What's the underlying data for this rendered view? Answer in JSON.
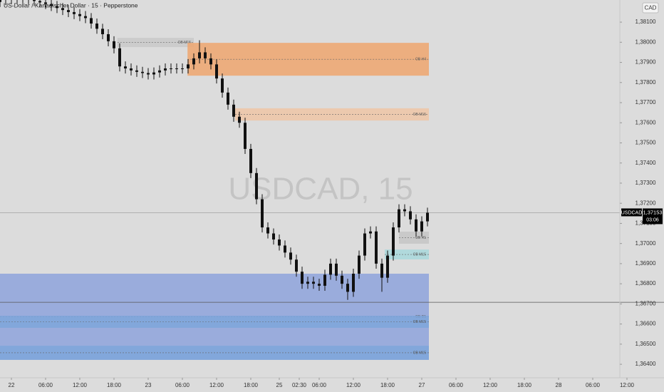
{
  "chart_data": {
    "type": "candlestick",
    "title": "US-Dollar / Kanadischer Dollar · 15 · Pepperstone",
    "watermark": "USDCAD, 15",
    "currency": "CAD",
    "symbol": "USDCAD",
    "last_price": {
      "value": 1.37153,
      "label": "1,37153"
    },
    "countdown": "03:06",
    "hline": 1.36708,
    "up_color": "#111111",
    "down_color": "#111111",
    "x": [
      -2,
      -1,
      0,
      1,
      2,
      3,
      4,
      5,
      6,
      7,
      8,
      9,
      10,
      11,
      12,
      13,
      14,
      15,
      16,
      17,
      18,
      19,
      20,
      21,
      22,
      23,
      24,
      25,
      26,
      27,
      28,
      29,
      30,
      31,
      32,
      33,
      34,
      35,
      36,
      37,
      38,
      39,
      40,
      41,
      42,
      43,
      44,
      45,
      46,
      47,
      48,
      49,
      50,
      51,
      52,
      53,
      54,
      55,
      56,
      57,
      58,
      59,
      60,
      61,
      62,
      63,
      64,
      65,
      66,
      67,
      68,
      69,
      70,
      71,
      72,
      73
    ],
    "open": [
      1.382,
      1.3821,
      1.38215,
      1.38218,
      1.3822,
      1.38222,
      1.38214,
      1.38205,
      1.38198,
      1.3819,
      1.3818,
      1.3817,
      1.3816,
      1.3815,
      1.3814,
      1.3813,
      1.3812,
      1.38093,
      1.38067,
      1.3804,
      1.38005,
      1.3797,
      1.3788,
      1.3787,
      1.3786,
      1.37853,
      1.37847,
      1.3784,
      1.3785,
      1.3786,
      1.3787,
      1.3787,
      1.3787,
      1.3787,
      1.3789,
      1.3792,
      1.3795,
      1.3792,
      1.3789,
      1.3782,
      1.3775,
      1.3769,
      1.3763,
      1.376,
      1.3747,
      1.3735,
      1.3722,
      1.3708,
      1.3705,
      1.3702,
      1.3699,
      1.36955,
      1.3692,
      1.3686,
      1.368,
      1.3681,
      1.368,
      1.3679,
      1.36845,
      1.369,
      1.3684,
      1.368,
      1.3676,
      1.3685,
      1.3694,
      1.3705,
      1.3706,
      1.369,
      1.3683,
      1.3694,
      1.3708,
      1.3717,
      1.3716,
      1.3712,
      1.3706,
      1.3711
    ],
    "high": [
      1.38235,
      1.3824,
      1.38243,
      1.38245,
      1.38247,
      1.38247,
      1.38239,
      1.3823,
      1.38223,
      1.38215,
      1.38205,
      1.38195,
      1.38185,
      1.38175,
      1.38165,
      1.38155,
      1.38145,
      1.38118,
      1.38092,
      1.38065,
      1.3803,
      1.37995,
      1.37905,
      1.37895,
      1.37885,
      1.37878,
      1.37872,
      1.37875,
      1.37885,
      1.37895,
      1.37895,
      1.37895,
      1.37895,
      1.37915,
      1.37945,
      1.3801,
      1.37975,
      1.37945,
      1.37915,
      1.37845,
      1.37775,
      1.37715,
      1.37655,
      1.37625,
      1.37495,
      1.37375,
      1.37245,
      1.37105,
      1.37075,
      1.37045,
      1.37015,
      1.3698,
      1.36945,
      1.36885,
      1.36835,
      1.36835,
      1.36825,
      1.3687,
      1.36925,
      1.36925,
      1.36865,
      1.36825,
      1.36875,
      1.36965,
      1.37075,
      1.37085,
      1.37085,
      1.36925,
      1.36965,
      1.37105,
      1.37195,
      1.37195,
      1.37185,
      1.37145,
      1.37135,
      1.37178
    ],
    "low": [
      1.38175,
      1.38185,
      1.3819,
      1.38193,
      1.38195,
      1.38189,
      1.3818,
      1.38173,
      1.38165,
      1.38155,
      1.38145,
      1.38135,
      1.38125,
      1.38115,
      1.38105,
      1.38095,
      1.38068,
      1.38042,
      1.38015,
      1.3798,
      1.37945,
      1.37855,
      1.37845,
      1.37835,
      1.37828,
      1.37822,
      1.37815,
      1.37815,
      1.37825,
      1.37835,
      1.37845,
      1.37845,
      1.37845,
      1.37845,
      1.37865,
      1.37895,
      1.37895,
      1.37865,
      1.37795,
      1.37725,
      1.37665,
      1.37605,
      1.37575,
      1.37445,
      1.37325,
      1.37195,
      1.37055,
      1.37025,
      1.36995,
      1.36965,
      1.3693,
      1.36895,
      1.36835,
      1.36775,
      1.36775,
      1.36775,
      1.36765,
      1.36765,
      1.3682,
      1.36815,
      1.36775,
      1.3672,
      1.36735,
      1.36825,
      1.36915,
      1.37025,
      1.36875,
      1.3676,
      1.36805,
      1.36915,
      1.37055,
      1.37135,
      1.37095,
      1.37035,
      1.37035,
      1.37085
    ],
    "close": [
      1.3821,
      1.38215,
      1.38218,
      1.3822,
      1.38222,
      1.38214,
      1.38205,
      1.38198,
      1.3819,
      1.3818,
      1.3817,
      1.3816,
      1.3815,
      1.3814,
      1.3813,
      1.3812,
      1.38093,
      1.38067,
      1.3804,
      1.38005,
      1.3797,
      1.3788,
      1.3787,
      1.3786,
      1.37853,
      1.37847,
      1.3784,
      1.3785,
      1.3786,
      1.3787,
      1.3787,
      1.3787,
      1.3787,
      1.3789,
      1.3792,
      1.3795,
      1.3792,
      1.3789,
      1.3782,
      1.3775,
      1.3769,
      1.3763,
      1.376,
      1.3747,
      1.3735,
      1.3722,
      1.3708,
      1.3705,
      1.3702,
      1.3699,
      1.36955,
      1.3692,
      1.3686,
      1.368,
      1.3681,
      1.368,
      1.3679,
      1.36845,
      1.369,
      1.3684,
      1.368,
      1.3676,
      1.3685,
      1.3694,
      1.3705,
      1.3706,
      1.369,
      1.3683,
      1.3694,
      1.3708,
      1.3717,
      1.3716,
      1.3712,
      1.3706,
      1.3711,
      1.37153
    ],
    "zones": [
      {
        "label": "OB M15",
        "x0": 18.6,
        "x1": 32,
        "y0": 1.37976,
        "y1": 1.38022,
        "color": "#c9c9c9"
      },
      {
        "label": "OB H4",
        "x0": 30.9,
        "x1": 73.25,
        "y0": 1.37834,
        "y1": 1.37997,
        "color": "#eea66e"
      },
      {
        "label": "OB M15",
        "x0": 39.25,
        "x1": 73.25,
        "y0": 1.37611,
        "y1": 1.37672,
        "color": "#efc6a6"
      },
      {
        "label": "OB H1",
        "x0": 68,
        "x1": 73.25,
        "y0": 1.36999,
        "y1": 1.37059,
        "color": "#c6c6c6"
      },
      {
        "label": "OB M15",
        "x0": 65.5,
        "x1": 73.25,
        "y0": 1.36921,
        "y1": 1.3697,
        "color": "#a8d8dc"
      },
      {
        "label": "OB D1",
        "x0": -2,
        "x1": 73.25,
        "y0": 1.36422,
        "y1": 1.3685,
        "color": "#8ea3dc"
      },
      {
        "label": "OB M15",
        "x0": -2,
        "x1": 73.25,
        "y0": 1.36581,
        "y1": 1.36641,
        "color": "#7ea6da"
      },
      {
        "label": "OB M15",
        "x0": -2,
        "x1": 73.25,
        "y0": 1.36422,
        "y1": 1.36492,
        "color": "#7ea6da"
      }
    ],
    "xlim": [
      -2,
      106.75
    ],
    "ylim": [
      1.36333,
      1.3821
    ],
    "xticks": [
      {
        "value": 0,
        "label": "22"
      },
      {
        "value": 6,
        "label": "06:00"
      },
      {
        "value": 12,
        "label": "12:00"
      },
      {
        "value": 18,
        "label": "18:00"
      },
      {
        "value": 24,
        "label": "23"
      },
      {
        "value": 30,
        "label": "06:00"
      },
      {
        "value": 36,
        "label": "12:00"
      },
      {
        "value": 42,
        "label": "18:00"
      },
      {
        "value": 47,
        "label": "25"
      },
      {
        "value": 50.5,
        "label": "02:30"
      },
      {
        "value": 54,
        "label": "06:00"
      },
      {
        "value": 60,
        "label": "12:00"
      },
      {
        "value": 66,
        "label": "18:00"
      },
      {
        "value": 72,
        "label": "27"
      },
      {
        "value": 78,
        "label": "06:00"
      },
      {
        "value": 84,
        "label": "12:00"
      },
      {
        "value": 90,
        "label": "18:00"
      },
      {
        "value": 96,
        "label": "28"
      },
      {
        "value": 102,
        "label": "06:00"
      },
      {
        "value": 108,
        "label": "12:00"
      }
    ],
    "yticks": [
      {
        "value": 1.381,
        "label": "1,38100"
      },
      {
        "value": 1.38,
        "label": "1,38000"
      },
      {
        "value": 1.379,
        "label": "1,37900"
      },
      {
        "value": 1.378,
        "label": "1,37800"
      },
      {
        "value": 1.377,
        "label": "1,37700"
      },
      {
        "value": 1.376,
        "label": "1,37600"
      },
      {
        "value": 1.375,
        "label": "1,37500"
      },
      {
        "value": 1.374,
        "label": "1,37400"
      },
      {
        "value": 1.373,
        "label": "1,37300"
      },
      {
        "value": 1.372,
        "label": "1,37200"
      },
      {
        "value": 1.371,
        "label": "1,37100"
      },
      {
        "value": 1.37,
        "label": "1,37000"
      },
      {
        "value": 1.369,
        "label": "1,36900"
      },
      {
        "value": 1.368,
        "label": "1,36800"
      },
      {
        "value": 1.367,
        "label": "1,36700"
      },
      {
        "value": 1.366,
        "label": "1,36600"
      },
      {
        "value": 1.365,
        "label": "1,36500"
      },
      {
        "value": 1.364,
        "label": "1,36400"
      }
    ]
  }
}
